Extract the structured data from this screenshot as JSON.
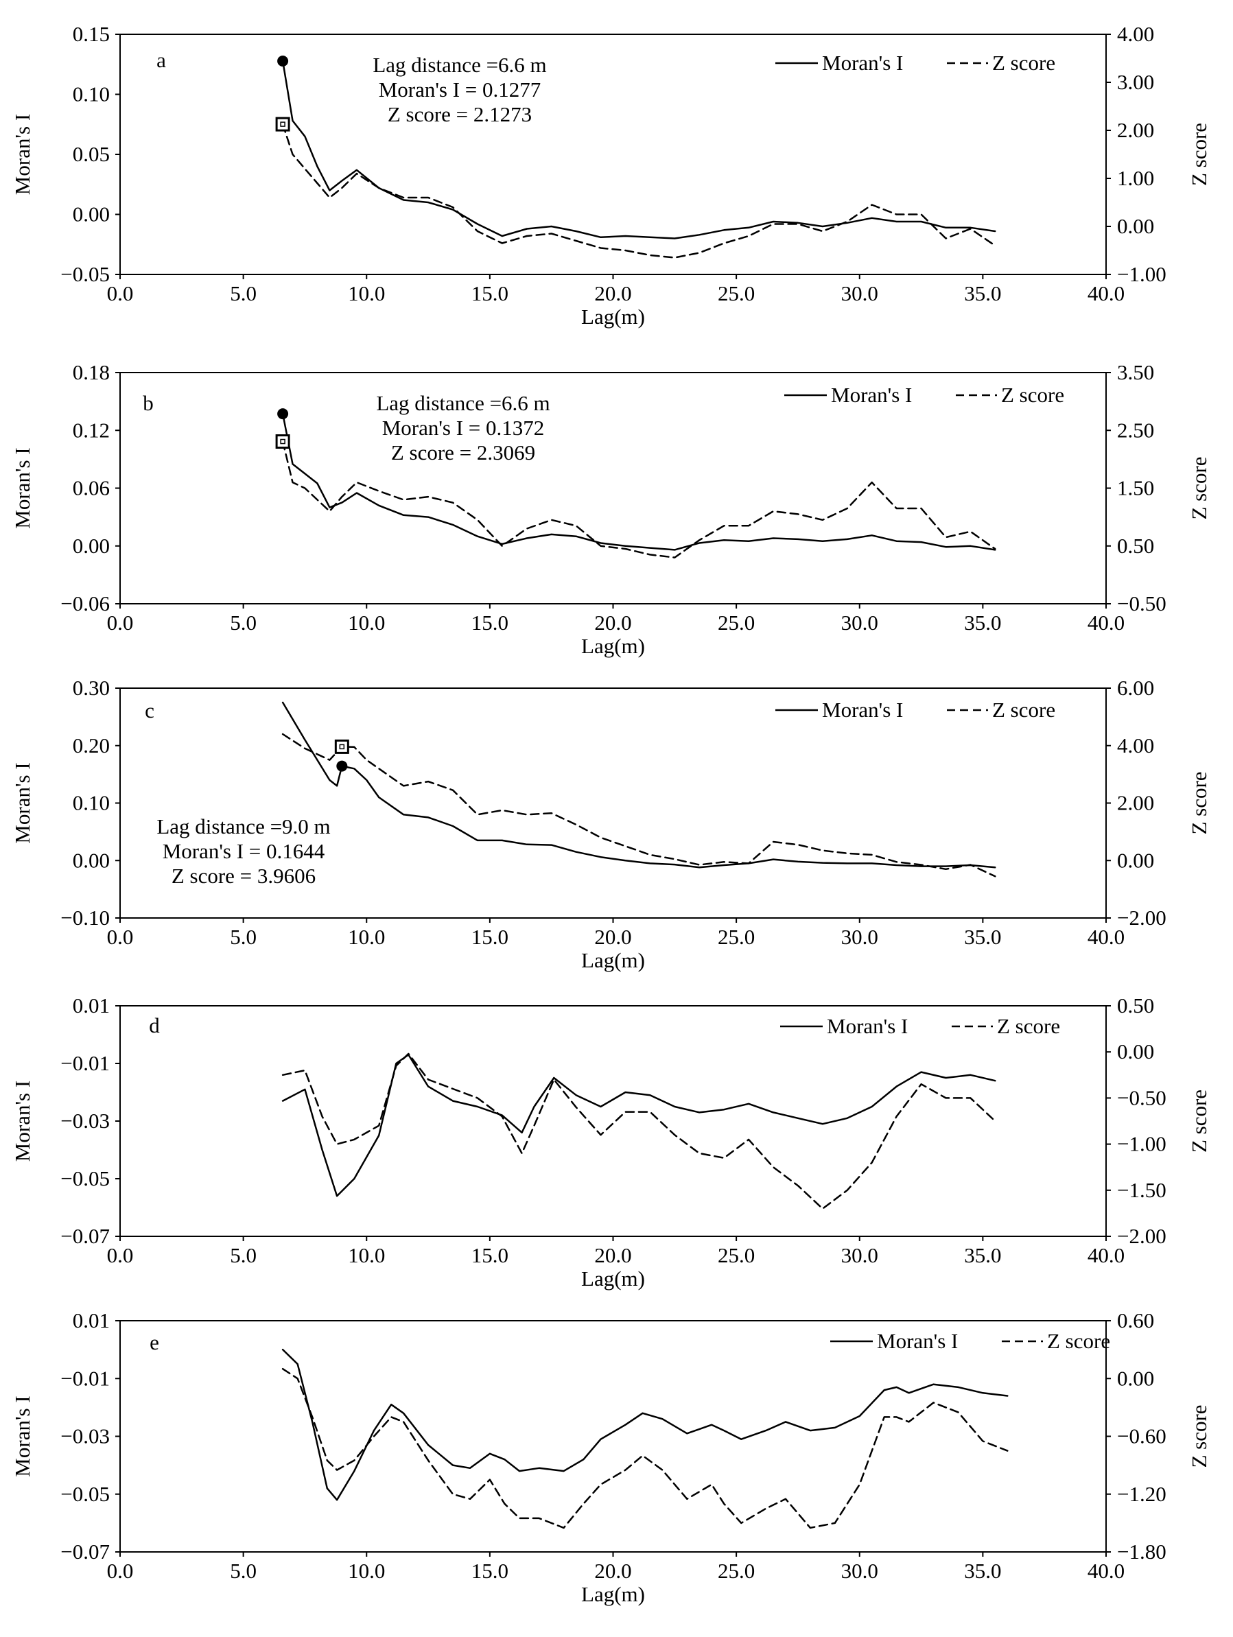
{
  "chart_data": [
    {
      "panel_label": "a",
      "type": "line",
      "xlabel": "Lag(m)",
      "ylabel_left": "Moran's I",
      "ylabel_right": "Z score",
      "xlim": [
        0,
        40
      ],
      "x_ticks": [
        "0.0",
        "5.0",
        "10.0",
        "15.0",
        "20.0",
        "25.0",
        "30.0",
        "35.0",
        "40.0"
      ],
      "ylim_left": [
        -0.05,
        0.15
      ],
      "y_ticks_left": [
        "−0.05",
        "0.00",
        "0.05",
        "0.10",
        "0.15"
      ],
      "ylim_right": [
        -1,
        4
      ],
      "y_ticks_right": [
        "−1.00",
        "0.00",
        "1.00",
        "2.00",
        "3.00",
        "4.00"
      ],
      "legend": {
        "moran": "Moran's I",
        "z": "Z score"
      },
      "annotation": [
        "Lag distance =6.6 m",
        "Moran's I = 0.1277",
        "Z score = 2.1273"
      ],
      "marker_point": {
        "x": 6.6,
        "moran": 0.1277,
        "z": 2.1273
      },
      "series": [
        {
          "name": "Moran's I",
          "style": "solid",
          "x": [
            6.6,
            7.0,
            7.5,
            8.0,
            8.5,
            9.0,
            9.6,
            10.5,
            11.5,
            12.5,
            13.5,
            14.5,
            15.5,
            16.5,
            17.5,
            18.5,
            19.5,
            20.5,
            21.5,
            22.5,
            23.5,
            24.5,
            25.5,
            26.5,
            27.5,
            28.5,
            29.5,
            30.5,
            31.5,
            32.5,
            33.5,
            34.5,
            35.5
          ],
          "values": [
            0.1277,
            0.078,
            0.065,
            0.04,
            0.02,
            0.028,
            0.037,
            0.022,
            0.012,
            0.01,
            0.004,
            -0.008,
            -0.018,
            -0.012,
            -0.01,
            -0.014,
            -0.019,
            -0.018,
            -0.019,
            -0.02,
            -0.017,
            -0.013,
            -0.011,
            -0.006,
            -0.007,
            -0.01,
            -0.007,
            -0.003,
            -0.006,
            -0.006,
            -0.011,
            -0.011,
            -0.014
          ]
        },
        {
          "name": "Z score",
          "style": "dashed",
          "x": [
            6.6,
            7.0,
            7.5,
            8.0,
            8.5,
            9.0,
            9.6,
            10.5,
            11.5,
            12.5,
            13.5,
            14.5,
            15.5,
            16.5,
            17.5,
            18.5,
            19.5,
            20.5,
            21.5,
            22.5,
            23.5,
            24.5,
            25.5,
            26.5,
            27.5,
            28.5,
            29.5,
            30.5,
            31.5,
            32.5,
            33.5,
            34.5,
            35.5
          ],
          "values": [
            2.1273,
            1.5,
            1.2,
            0.9,
            0.6,
            0.8,
            1.1,
            0.8,
            0.6,
            0.6,
            0.4,
            -0.1,
            -0.35,
            -0.2,
            -0.15,
            -0.3,
            -0.45,
            -0.5,
            -0.6,
            -0.65,
            -0.55,
            -0.35,
            -0.2,
            0.05,
            0.05,
            -0.1,
            0.1,
            0.45,
            0.25,
            0.25,
            -0.25,
            -0.05,
            -0.4
          ]
        }
      ]
    },
    {
      "panel_label": "b",
      "type": "line",
      "xlabel": "Lag(m)",
      "ylabel_left": "Moran's I",
      "ylabel_right": "Z score",
      "xlim": [
        0,
        40
      ],
      "x_ticks": [
        "0.0",
        "5.0",
        "10.0",
        "15.0",
        "20.0",
        "25.0",
        "30.0",
        "35.0",
        "40.0"
      ],
      "ylim_left": [
        -0.06,
        0.18
      ],
      "y_ticks_left": [
        "−0.06",
        "0.00",
        "0.06",
        "0.12",
        "0.18"
      ],
      "ylim_right": [
        -0.5,
        3.5
      ],
      "y_ticks_right": [
        "−0.50",
        "0.50",
        "1.50",
        "2.50",
        "3.50"
      ],
      "legend": {
        "moran": "Moran's I",
        "z": "Z score"
      },
      "annotation": [
        "Lag distance =6.6 m",
        "Moran's I = 0.1372",
        "Z score = 2.3069"
      ],
      "marker_point": {
        "x": 6.6,
        "moran": 0.1372,
        "z": 2.3069
      },
      "series": [
        {
          "name": "Moran's I",
          "style": "solid",
          "x": [
            6.6,
            7.0,
            7.5,
            8.0,
            8.5,
            9.0,
            9.6,
            10.5,
            11.5,
            12.5,
            13.5,
            14.5,
            15.5,
            16.5,
            17.5,
            18.5,
            19.5,
            20.5,
            21.5,
            22.5,
            23.5,
            24.5,
            25.5,
            26.5,
            27.5,
            28.5,
            29.5,
            30.5,
            31.5,
            32.5,
            33.5,
            34.5,
            35.5
          ],
          "values": [
            0.1372,
            0.085,
            0.075,
            0.065,
            0.04,
            0.045,
            0.055,
            0.042,
            0.032,
            0.03,
            0.022,
            0.01,
            0.002,
            0.008,
            0.012,
            0.01,
            0.003,
            0.0,
            -0.002,
            -0.004,
            0.003,
            0.006,
            0.005,
            0.008,
            0.007,
            0.005,
            0.007,
            0.011,
            0.005,
            0.004,
            -0.001,
            0.0,
            -0.004
          ]
        },
        {
          "name": "Z score",
          "style": "dashed",
          "x": [
            6.6,
            7.0,
            7.5,
            8.0,
            8.5,
            9.0,
            9.6,
            10.5,
            11.5,
            12.5,
            13.5,
            14.5,
            15.5,
            16.5,
            17.5,
            18.5,
            19.5,
            20.5,
            21.5,
            22.5,
            23.5,
            24.5,
            25.5,
            26.5,
            27.5,
            28.5,
            29.5,
            30.5,
            31.5,
            32.5,
            33.5,
            34.5,
            35.5
          ],
          "values": [
            2.3069,
            1.6,
            1.5,
            1.3,
            1.1,
            1.35,
            1.6,
            1.45,
            1.3,
            1.35,
            1.25,
            0.95,
            0.5,
            0.8,
            0.95,
            0.85,
            0.5,
            0.45,
            0.35,
            0.3,
            0.6,
            0.85,
            0.85,
            1.1,
            1.05,
            0.95,
            1.15,
            1.6,
            1.15,
            1.15,
            0.65,
            0.75,
            0.45
          ]
        }
      ]
    },
    {
      "panel_label": "c",
      "type": "line",
      "xlabel": "Lag(m)",
      "ylabel_left": "Moran's I",
      "ylabel_right": "Z score",
      "xlim": [
        0,
        40
      ],
      "x_ticks": [
        "0.0",
        "5.0",
        "10.0",
        "15.0",
        "20.0",
        "25.0",
        "30.0",
        "35.0",
        "40.0"
      ],
      "ylim_left": [
        -0.1,
        0.3
      ],
      "y_ticks_left": [
        "−0.10",
        "0.00",
        "0.10",
        "0.20",
        "0.30"
      ],
      "ylim_right": [
        -2,
        6
      ],
      "y_ticks_right": [
        "−2.00",
        "0.00",
        "2.00",
        "4.00",
        "6.00"
      ],
      "legend": {
        "moran": "Moran's I",
        "z": "Z score"
      },
      "annotation": [
        "Lag distance =9.0 m",
        "Moran's I = 0.1644",
        "Z score = 3.9606"
      ],
      "marker_point": {
        "x": 9.0,
        "moran": 0.1644,
        "z": 3.9606
      },
      "series": [
        {
          "name": "Moran's I",
          "style": "solid",
          "x": [
            6.6,
            7.5,
            8.5,
            8.8,
            9.0,
            9.5,
            10.0,
            10.5,
            11.5,
            12.5,
            13.5,
            14.5,
            15.5,
            16.5,
            17.5,
            18.5,
            19.5,
            20.5,
            21.5,
            22.5,
            23.5,
            24.5,
            25.5,
            26.5,
            27.5,
            28.5,
            29.5,
            30.5,
            31.5,
            32.5,
            33.5,
            34.5,
            35.5
          ],
          "values": [
            0.275,
            0.21,
            0.14,
            0.13,
            0.1644,
            0.16,
            0.14,
            0.11,
            0.08,
            0.075,
            0.06,
            0.035,
            0.035,
            0.028,
            0.027,
            0.015,
            0.006,
            0.0,
            -0.005,
            -0.007,
            -0.012,
            -0.008,
            -0.005,
            0.002,
            -0.002,
            -0.004,
            -0.005,
            -0.005,
            -0.008,
            -0.01,
            -0.01,
            -0.008,
            -0.012
          ]
        },
        {
          "name": "Z score",
          "style": "dashed",
          "x": [
            6.6,
            7.5,
            8.5,
            9.0,
            9.5,
            10.0,
            10.5,
            11.5,
            12.5,
            13.5,
            14.5,
            15.5,
            16.5,
            17.5,
            18.5,
            19.5,
            20.5,
            21.5,
            22.5,
            23.5,
            24.5,
            25.5,
            26.5,
            27.5,
            28.5,
            29.5,
            30.5,
            31.5,
            32.5,
            33.5,
            34.5,
            35.5
          ],
          "values": [
            4.4,
            3.9,
            3.5,
            3.9606,
            3.95,
            3.5,
            3.2,
            2.6,
            2.75,
            2.45,
            1.6,
            1.75,
            1.6,
            1.65,
            1.25,
            0.8,
            0.5,
            0.2,
            0.05,
            -0.15,
            -0.05,
            -0.1,
            0.65,
            0.55,
            0.35,
            0.25,
            0.2,
            -0.05,
            -0.15,
            -0.3,
            -0.15,
            -0.55
          ]
        }
      ]
    },
    {
      "panel_label": "d",
      "type": "line",
      "xlabel": "Lag(m)",
      "ylabel_left": "Moran's I",
      "ylabel_right": "Z score",
      "xlim": [
        0,
        40
      ],
      "x_ticks": [
        "0.0",
        "5.0",
        "10.0",
        "15.0",
        "20.0",
        "25.0",
        "30.0",
        "35.0",
        "40.0"
      ],
      "ylim_left": [
        -0.07,
        0.01
      ],
      "y_ticks_left": [
        "−0.07",
        "−0.05",
        "−0.03",
        "−0.01",
        "0.01"
      ],
      "ylim_right": [
        -2.0,
        0.5
      ],
      "y_ticks_right": [
        "−2.00",
        "−1.50",
        "−1.00",
        "−0.50",
        "0.00",
        "0.50"
      ],
      "legend": {
        "moran": "Moran's I",
        "z": "Z score"
      },
      "series": [
        {
          "name": "Moran's I",
          "style": "solid",
          "x": [
            6.6,
            7.5,
            8.2,
            8.8,
            9.5,
            10.5,
            11.2,
            11.7,
            12.5,
            13.5,
            14.5,
            15.5,
            16.3,
            16.8,
            17.6,
            18.5,
            19.5,
            20.5,
            21.5,
            22.5,
            23.5,
            24.5,
            25.5,
            26.5,
            27.5,
            28.5,
            29.5,
            30.5,
            31.5,
            32.5,
            33.5,
            34.5,
            35.5
          ],
          "values": [
            -0.023,
            -0.019,
            -0.04,
            -0.056,
            -0.05,
            -0.035,
            -0.01,
            -0.007,
            -0.018,
            -0.023,
            -0.025,
            -0.028,
            -0.034,
            -0.025,
            -0.015,
            -0.021,
            -0.025,
            -0.02,
            -0.021,
            -0.025,
            -0.027,
            -0.026,
            -0.024,
            -0.027,
            -0.029,
            -0.031,
            -0.029,
            -0.025,
            -0.018,
            -0.013,
            -0.015,
            -0.014,
            -0.016
          ]
        },
        {
          "name": "Z score",
          "style": "dashed",
          "x": [
            6.6,
            7.5,
            8.2,
            8.8,
            9.5,
            10.5,
            11.2,
            11.7,
            12.5,
            13.5,
            14.5,
            15.5,
            16.3,
            16.8,
            17.6,
            18.5,
            19.5,
            20.5,
            21.5,
            22.5,
            23.5,
            24.5,
            25.5,
            26.5,
            27.5,
            28.5,
            29.5,
            30.5,
            31.5,
            32.5,
            33.5,
            34.5,
            35.5
          ],
          "values": [
            -0.25,
            -0.2,
            -0.7,
            -1.0,
            -0.95,
            -0.8,
            -0.15,
            -0.02,
            -0.3,
            -0.4,
            -0.5,
            -0.7,
            -1.1,
            -0.8,
            -0.3,
            -0.6,
            -0.9,
            -0.65,
            -0.65,
            -0.9,
            -1.1,
            -1.15,
            -0.95,
            -1.25,
            -1.45,
            -1.7,
            -1.5,
            -1.2,
            -0.7,
            -0.35,
            -0.5,
            -0.5,
            -0.75
          ]
        }
      ]
    },
    {
      "panel_label": "e",
      "type": "line",
      "xlabel": "Lag(m)",
      "ylabel_left": "Moran's I",
      "ylabel_right": "Z score",
      "xlim": [
        0,
        40
      ],
      "x_ticks": [
        "0.0",
        "5.0",
        "10.0",
        "15.0",
        "20.0",
        "25.0",
        "30.0",
        "35.0",
        "40.0"
      ],
      "ylim_left": [
        -0.07,
        0.01
      ],
      "y_ticks_left": [
        "−0.07",
        "−0.05",
        "−0.03",
        "−0.01",
        "0.01"
      ],
      "ylim_right": [
        -1.8,
        0.6
      ],
      "y_ticks_right": [
        "−1.80",
        "−1.20",
        "−0.60",
        "0.00",
        "0.60"
      ],
      "legend": {
        "moran": "Moran's I",
        "z": "Z score"
      },
      "series": [
        {
          "name": "Moran's I",
          "style": "solid",
          "x": [
            6.6,
            7.2,
            7.8,
            8.4,
            8.8,
            9.5,
            10.3,
            11.0,
            11.5,
            12.5,
            13.5,
            14.2,
            15.0,
            15.6,
            16.2,
            17.0,
            18.0,
            18.8,
            19.5,
            20.5,
            21.2,
            22.0,
            23.0,
            24.0,
            24.5,
            25.2,
            26.2,
            27.0,
            28.0,
            29.0,
            30.0,
            31.0,
            31.5,
            32.0,
            33.0,
            34.0,
            35.0,
            36.0
          ],
          "values": [
            0.0,
            -0.005,
            -0.025,
            -0.048,
            -0.052,
            -0.042,
            -0.028,
            -0.019,
            -0.022,
            -0.033,
            -0.04,
            -0.041,
            -0.036,
            -0.038,
            -0.042,
            -0.041,
            -0.042,
            -0.038,
            -0.031,
            -0.026,
            -0.022,
            -0.024,
            -0.029,
            -0.026,
            -0.028,
            -0.031,
            -0.028,
            -0.025,
            -0.028,
            -0.027,
            -0.023,
            -0.014,
            -0.013,
            -0.015,
            -0.012,
            -0.013,
            -0.015,
            -0.016
          ]
        },
        {
          "name": "Z score",
          "style": "dashed",
          "x": [
            6.6,
            7.2,
            7.8,
            8.4,
            8.8,
            9.5,
            10.3,
            11.0,
            11.5,
            12.5,
            13.5,
            14.2,
            15.0,
            15.6,
            16.2,
            17.0,
            18.0,
            18.8,
            19.5,
            20.5,
            21.2,
            22.0,
            23.0,
            24.0,
            24.5,
            25.2,
            26.2,
            27.0,
            28.0,
            29.0,
            30.0,
            31.0,
            31.5,
            32.0,
            33.0,
            34.0,
            35.0,
            36.0
          ],
          "values": [
            0.1,
            0.0,
            -0.4,
            -0.85,
            -0.95,
            -0.85,
            -0.6,
            -0.4,
            -0.45,
            -0.85,
            -1.2,
            -1.25,
            -1.05,
            -1.3,
            -1.45,
            -1.45,
            -1.55,
            -1.3,
            -1.1,
            -0.95,
            -0.8,
            -0.95,
            -1.25,
            -1.1,
            -1.3,
            -1.5,
            -1.35,
            -1.25,
            -1.55,
            -1.5,
            -1.1,
            -0.4,
            -0.4,
            -0.45,
            -0.25,
            -0.35,
            -0.65,
            -0.75
          ]
        }
      ]
    }
  ]
}
